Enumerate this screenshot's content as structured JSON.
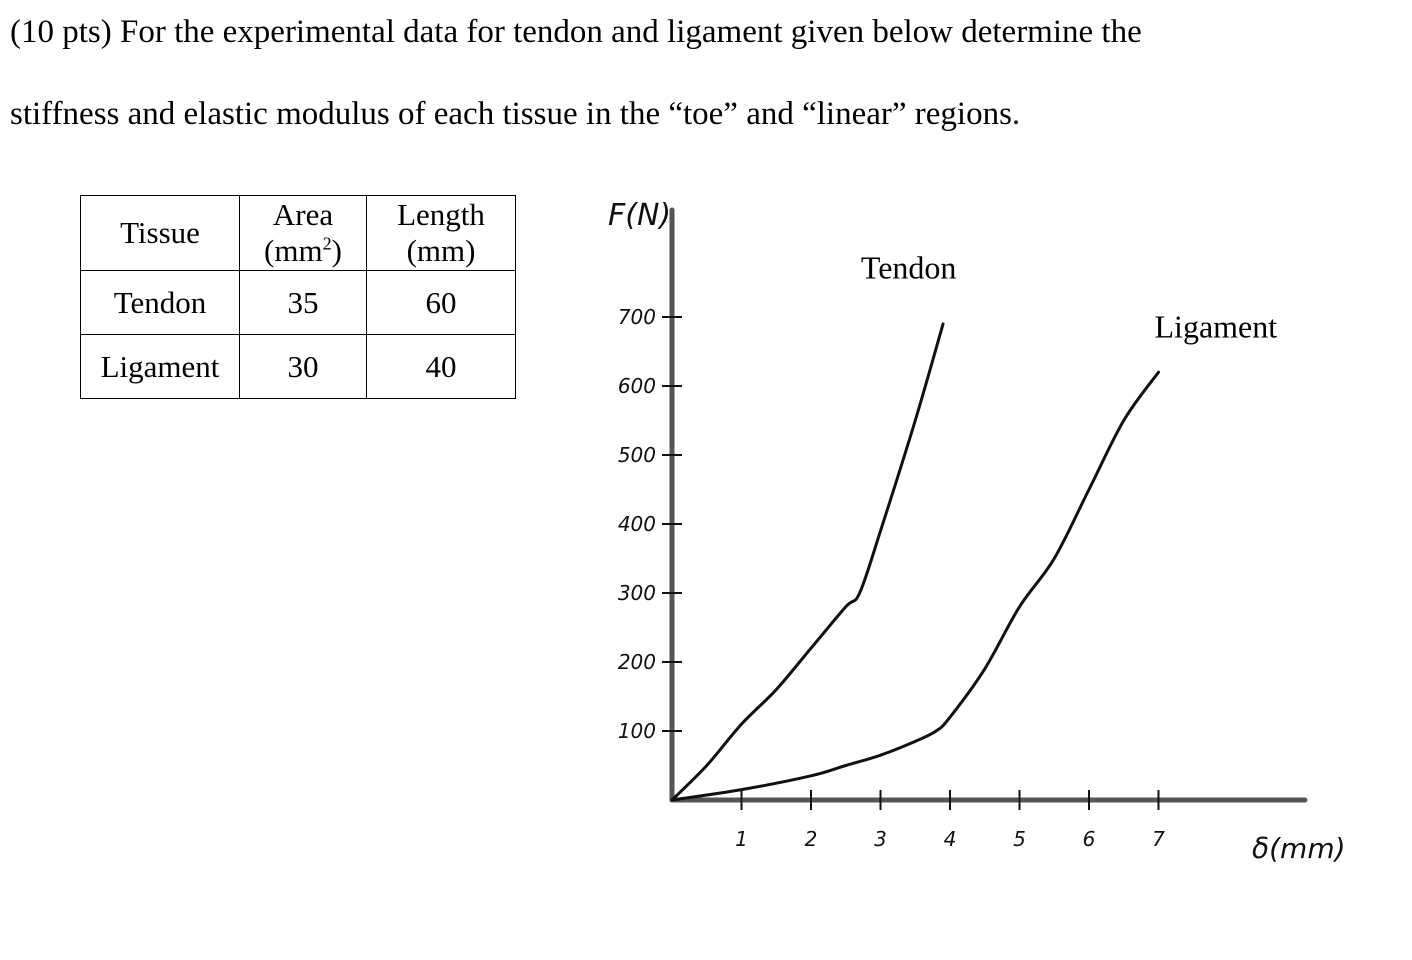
{
  "problem": {
    "line1": "(10 pts) For the experimental data for tendon and ligament given below determine the",
    "line2": "stiffness and elastic modulus of each tissue in the “toe” and “linear” regions."
  },
  "table": {
    "headers": [
      {
        "main": "Tissue",
        "unit_pre": "",
        "unit_sup": "",
        "unit_post": ""
      },
      {
        "main": "Area",
        "unit_pre": "(mm",
        "unit_sup": "2",
        "unit_post": ")"
      },
      {
        "main": "Length",
        "unit_pre": "(mm)",
        "unit_sup": "",
        "unit_post": ""
      }
    ],
    "rows": [
      [
        "Tendon",
        "35",
        "60"
      ],
      [
        "Ligament",
        "30",
        "40"
      ]
    ]
  },
  "chart_data": {
    "type": "line",
    "ylabel": "F(N)",
    "xlabel": "δ(mm)",
    "xlim": [
      0,
      9
    ],
    "ylim": [
      0,
      800
    ],
    "xticks": [
      1,
      2,
      3,
      4,
      5,
      6,
      7
    ],
    "xtick_labels": [
      "1",
      "2",
      "3",
      "4",
      "5",
      "6",
      "7"
    ],
    "yticks": [
      100,
      200,
      300,
      400,
      500,
      600,
      700
    ],
    "ytick_labels": [
      "100",
      "200",
      "300",
      "400",
      "500",
      "600",
      "700"
    ],
    "grid": false,
    "legend": "none",
    "series": [
      {
        "name": "Tendon",
        "x": [
          0,
          0.5,
          1,
          1.5,
          2,
          2.5,
          2.7,
          3,
          3.5,
          3.9
        ],
        "y": [
          0,
          50,
          110,
          160,
          220,
          280,
          300,
          390,
          550,
          690
        ]
      },
      {
        "name": "Ligament",
        "x": [
          0,
          1,
          2,
          2.5,
          3,
          3.5,
          3.8,
          4,
          4.5,
          5,
          5.5,
          6,
          6.5,
          7
        ],
        "y": [
          0,
          15,
          35,
          50,
          65,
          85,
          100,
          120,
          190,
          280,
          350,
          450,
          550,
          620
        ]
      }
    ],
    "annotations": [
      "Tendon",
      "Ligament"
    ]
  }
}
